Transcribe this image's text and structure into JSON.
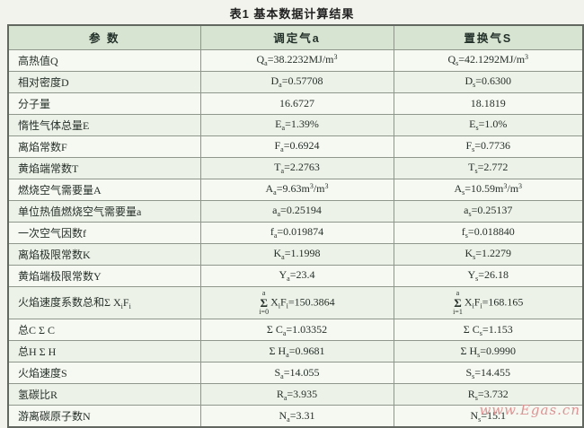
{
  "page": {
    "title": "表1  基本数据计算结果",
    "watermark": "www.Egas.cn"
  },
  "table": {
    "headers": [
      "参  数",
      "调定气a",
      "置换气S"
    ],
    "rows": [
      {
        "param": "高热值Q",
        "a": "Q_{a}=38.2232MJ/m^{3}",
        "s": "Q_{s}=42.1292MJ/m^{3}"
      },
      {
        "param": "相对密度D",
        "a": "D_{a}=0.57708",
        "s": "D_{s}=0.6300"
      },
      {
        "param": "分子量",
        "a": "16.6727",
        "s": "18.1819"
      },
      {
        "param": "惰性气体总量E",
        "a": "E_{a}=1.39%",
        "s": "E_{s}=1.0%"
      },
      {
        "param": "离焰常数F",
        "a": "F_{a}=0.6924",
        "s": "F_{s}=0.7736"
      },
      {
        "param": "黄焰端常数T",
        "a": "T_{a}=2.2763",
        "s": "T_{s}=2.772"
      },
      {
        "param": "燃烧空气需要量A",
        "a": "A_{a}=9.63m^{3}/m^{3}",
        "s": "A_{s}=10.59m^{3}/m^{3}"
      },
      {
        "param": "单位热值燃烧空气需要量a",
        "a": "a_{a}=0.25194",
        "s": "a_{s}=0.25137"
      },
      {
        "param": "一次空气因数f",
        "a": "f_{a}=0.019874",
        "s": "f_{s}=0.018840"
      },
      {
        "param": "离焰极限常数K",
        "a": "K_{a}=1.1998",
        "s": "K_{s}=1.2279"
      },
      {
        "param": "黄焰端极限常数Y",
        "a": "Y_{a}=23.4",
        "s": "Y_{s}=26.18"
      },
      {
        "param": "火焰速度系数总和Σ X_{i}F_{i}",
        "a": {
          "sigma_top": "a",
          "sigma_bottom": "i=0",
          "rest": "X_{i}F_{i}=150.3864"
        },
        "s": {
          "sigma_top": "a",
          "sigma_bottom": "i=1",
          "rest": "X_{i}F_{i}=168.165"
        }
      },
      {
        "param": "总C Σ C",
        "a": "Σ C_{a}=1.03352",
        "s": "Σ C_{s}=1.153"
      },
      {
        "param": "总H Σ H",
        "a": "Σ H_{a}=0.9681",
        "s": "Σ H_{s}=0.9990"
      },
      {
        "param": "火焰速度S",
        "a": "S_{a}=14.055",
        "s": "S_{s}=14.455"
      },
      {
        "param": "氢碳比R",
        "a": "R_{a}=3.935",
        "s": "R_{s}=3.732"
      },
      {
        "param": "游离碳原子数N",
        "a": "N_{a}=3.31",
        "s": "N_{s}=15.1"
      }
    ]
  }
}
